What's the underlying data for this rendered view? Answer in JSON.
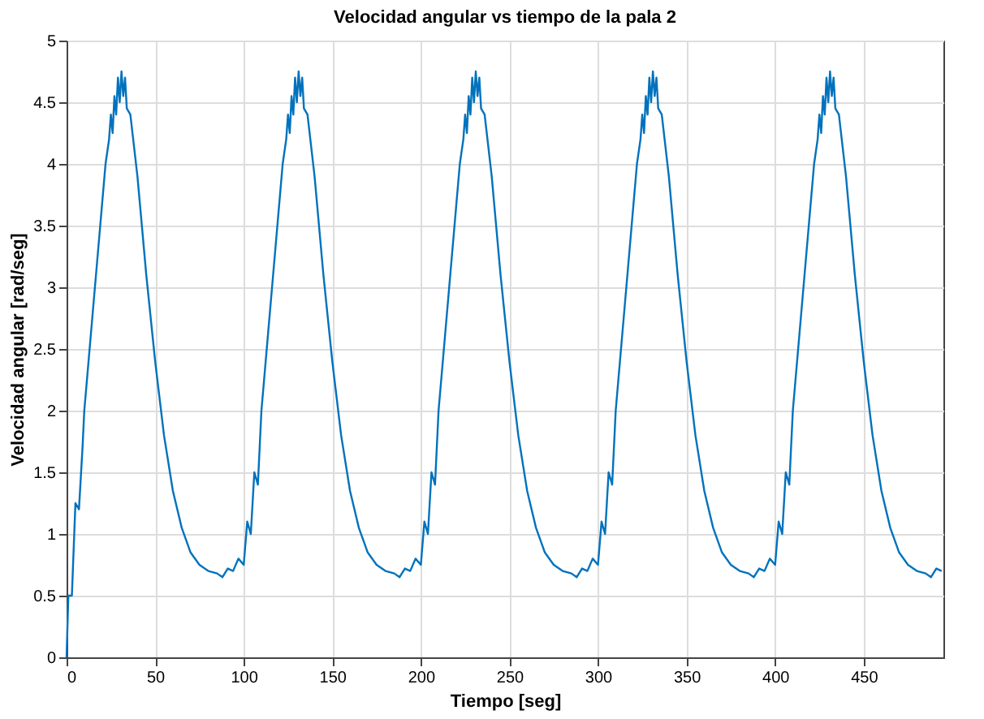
{
  "chart_data": {
    "type": "line",
    "title": "Velocidad angular vs tiempo de la pala 2",
    "xlabel": "Tiempo [seg]",
    "ylabel": "Velocidad angular [rad/seg]",
    "x": [
      0,
      1,
      3,
      5,
      7,
      9,
      10,
      13,
      16,
      19,
      22,
      24,
      25,
      26,
      27,
      28,
      29,
      30,
      31,
      32,
      33,
      34,
      36,
      40,
      45,
      50,
      55,
      60,
      65,
      70,
      75,
      80,
      85,
      88,
      91,
      94,
      97,
      100,
      102,
      104,
      106,
      108,
      110,
      113,
      116,
      119,
      122,
      124,
      125,
      126,
      127,
      128,
      129,
      130,
      131,
      132,
      133,
      134,
      136,
      140,
      145,
      150,
      155,
      160,
      165,
      170,
      175,
      180,
      185,
      188,
      191,
      194,
      197,
      200,
      202,
      204,
      206,
      208,
      210,
      213,
      216,
      219,
      222,
      224,
      225,
      226,
      227,
      228,
      229,
      230,
      231,
      232,
      233,
      234,
      236,
      240,
      245,
      250,
      255,
      260,
      265,
      270,
      275,
      280,
      285,
      288,
      291,
      294,
      297,
      300,
      302,
      304,
      306,
      308,
      310,
      313,
      316,
      319,
      322,
      324,
      325,
      326,
      327,
      328,
      329,
      330,
      331,
      332,
      333,
      334,
      336,
      340,
      345,
      350,
      355,
      360,
      365,
      370,
      375,
      380,
      385,
      388,
      391,
      394,
      397,
      400,
      402,
      404,
      406,
      408,
      410,
      413,
      416,
      419,
      422,
      424,
      425,
      426,
      427,
      428,
      429,
      430,
      431,
      432,
      433,
      434,
      436,
      440,
      445,
      450,
      455,
      460,
      465,
      470,
      475,
      480,
      485,
      488,
      491,
      494
    ],
    "series": [
      {
        "color": "#0072bd",
        "values": [
          0,
          0.5,
          0.5,
          1.25,
          1.2,
          1.7,
          2.0,
          2.5,
          3.0,
          3.5,
          4.0,
          4.2,
          4.4,
          4.25,
          4.55,
          4.4,
          4.7,
          4.5,
          4.75,
          4.55,
          4.7,
          4.45,
          4.4,
          3.9,
          3.1,
          2.4,
          1.8,
          1.35,
          1.05,
          0.85,
          0.75,
          0.7,
          0.68,
          0.65,
          0.72,
          0.7,
          0.8,
          0.75,
          1.1,
          1.0,
          1.5,
          1.4,
          2.0,
          2.5,
          3.0,
          3.5,
          4.0,
          4.2,
          4.4,
          4.25,
          4.55,
          4.4,
          4.7,
          4.5,
          4.75,
          4.55,
          4.7,
          4.45,
          4.4,
          3.9,
          3.1,
          2.4,
          1.8,
          1.35,
          1.05,
          0.85,
          0.75,
          0.7,
          0.68,
          0.65,
          0.72,
          0.7,
          0.8,
          0.75,
          1.1,
          1.0,
          1.5,
          1.4,
          2.0,
          2.5,
          3.0,
          3.5,
          4.0,
          4.2,
          4.4,
          4.25,
          4.55,
          4.4,
          4.7,
          4.5,
          4.75,
          4.55,
          4.7,
          4.45,
          4.4,
          3.9,
          3.1,
          2.4,
          1.8,
          1.35,
          1.05,
          0.85,
          0.75,
          0.7,
          0.68,
          0.65,
          0.72,
          0.7,
          0.8,
          0.75,
          1.1,
          1.0,
          1.5,
          1.4,
          2.0,
          2.5,
          3.0,
          3.5,
          4.0,
          4.2,
          4.4,
          4.25,
          4.55,
          4.4,
          4.7,
          4.5,
          4.75,
          4.55,
          4.7,
          4.45,
          4.4,
          3.9,
          3.1,
          2.4,
          1.8,
          1.35,
          1.05,
          0.85,
          0.75,
          0.7,
          0.68,
          0.65,
          0.72,
          0.7,
          0.8,
          0.75,
          1.1,
          1.0,
          1.5,
          1.4,
          2.0,
          2.5,
          3.0,
          3.5,
          4.0,
          4.2,
          4.4,
          4.25,
          4.55,
          4.4,
          4.7,
          4.5,
          4.75,
          4.55,
          4.7,
          4.45,
          4.4,
          3.9,
          3.1,
          2.4,
          1.8,
          1.35,
          1.05,
          0.85,
          0.75,
          0.7,
          0.68,
          0.65,
          0.72,
          0.7
        ]
      }
    ],
    "xlim": [
      0,
      495
    ],
    "xticks": [
      0,
      50,
      100,
      150,
      200,
      250,
      300,
      350,
      400,
      450
    ],
    "ylim": [
      0,
      5
    ],
    "yticks": [
      0,
      0.5,
      1,
      1.5,
      2,
      2.5,
      3,
      3.5,
      4,
      4.5,
      5
    ],
    "grid": true,
    "line_style": "solid",
    "marker": "none"
  }
}
